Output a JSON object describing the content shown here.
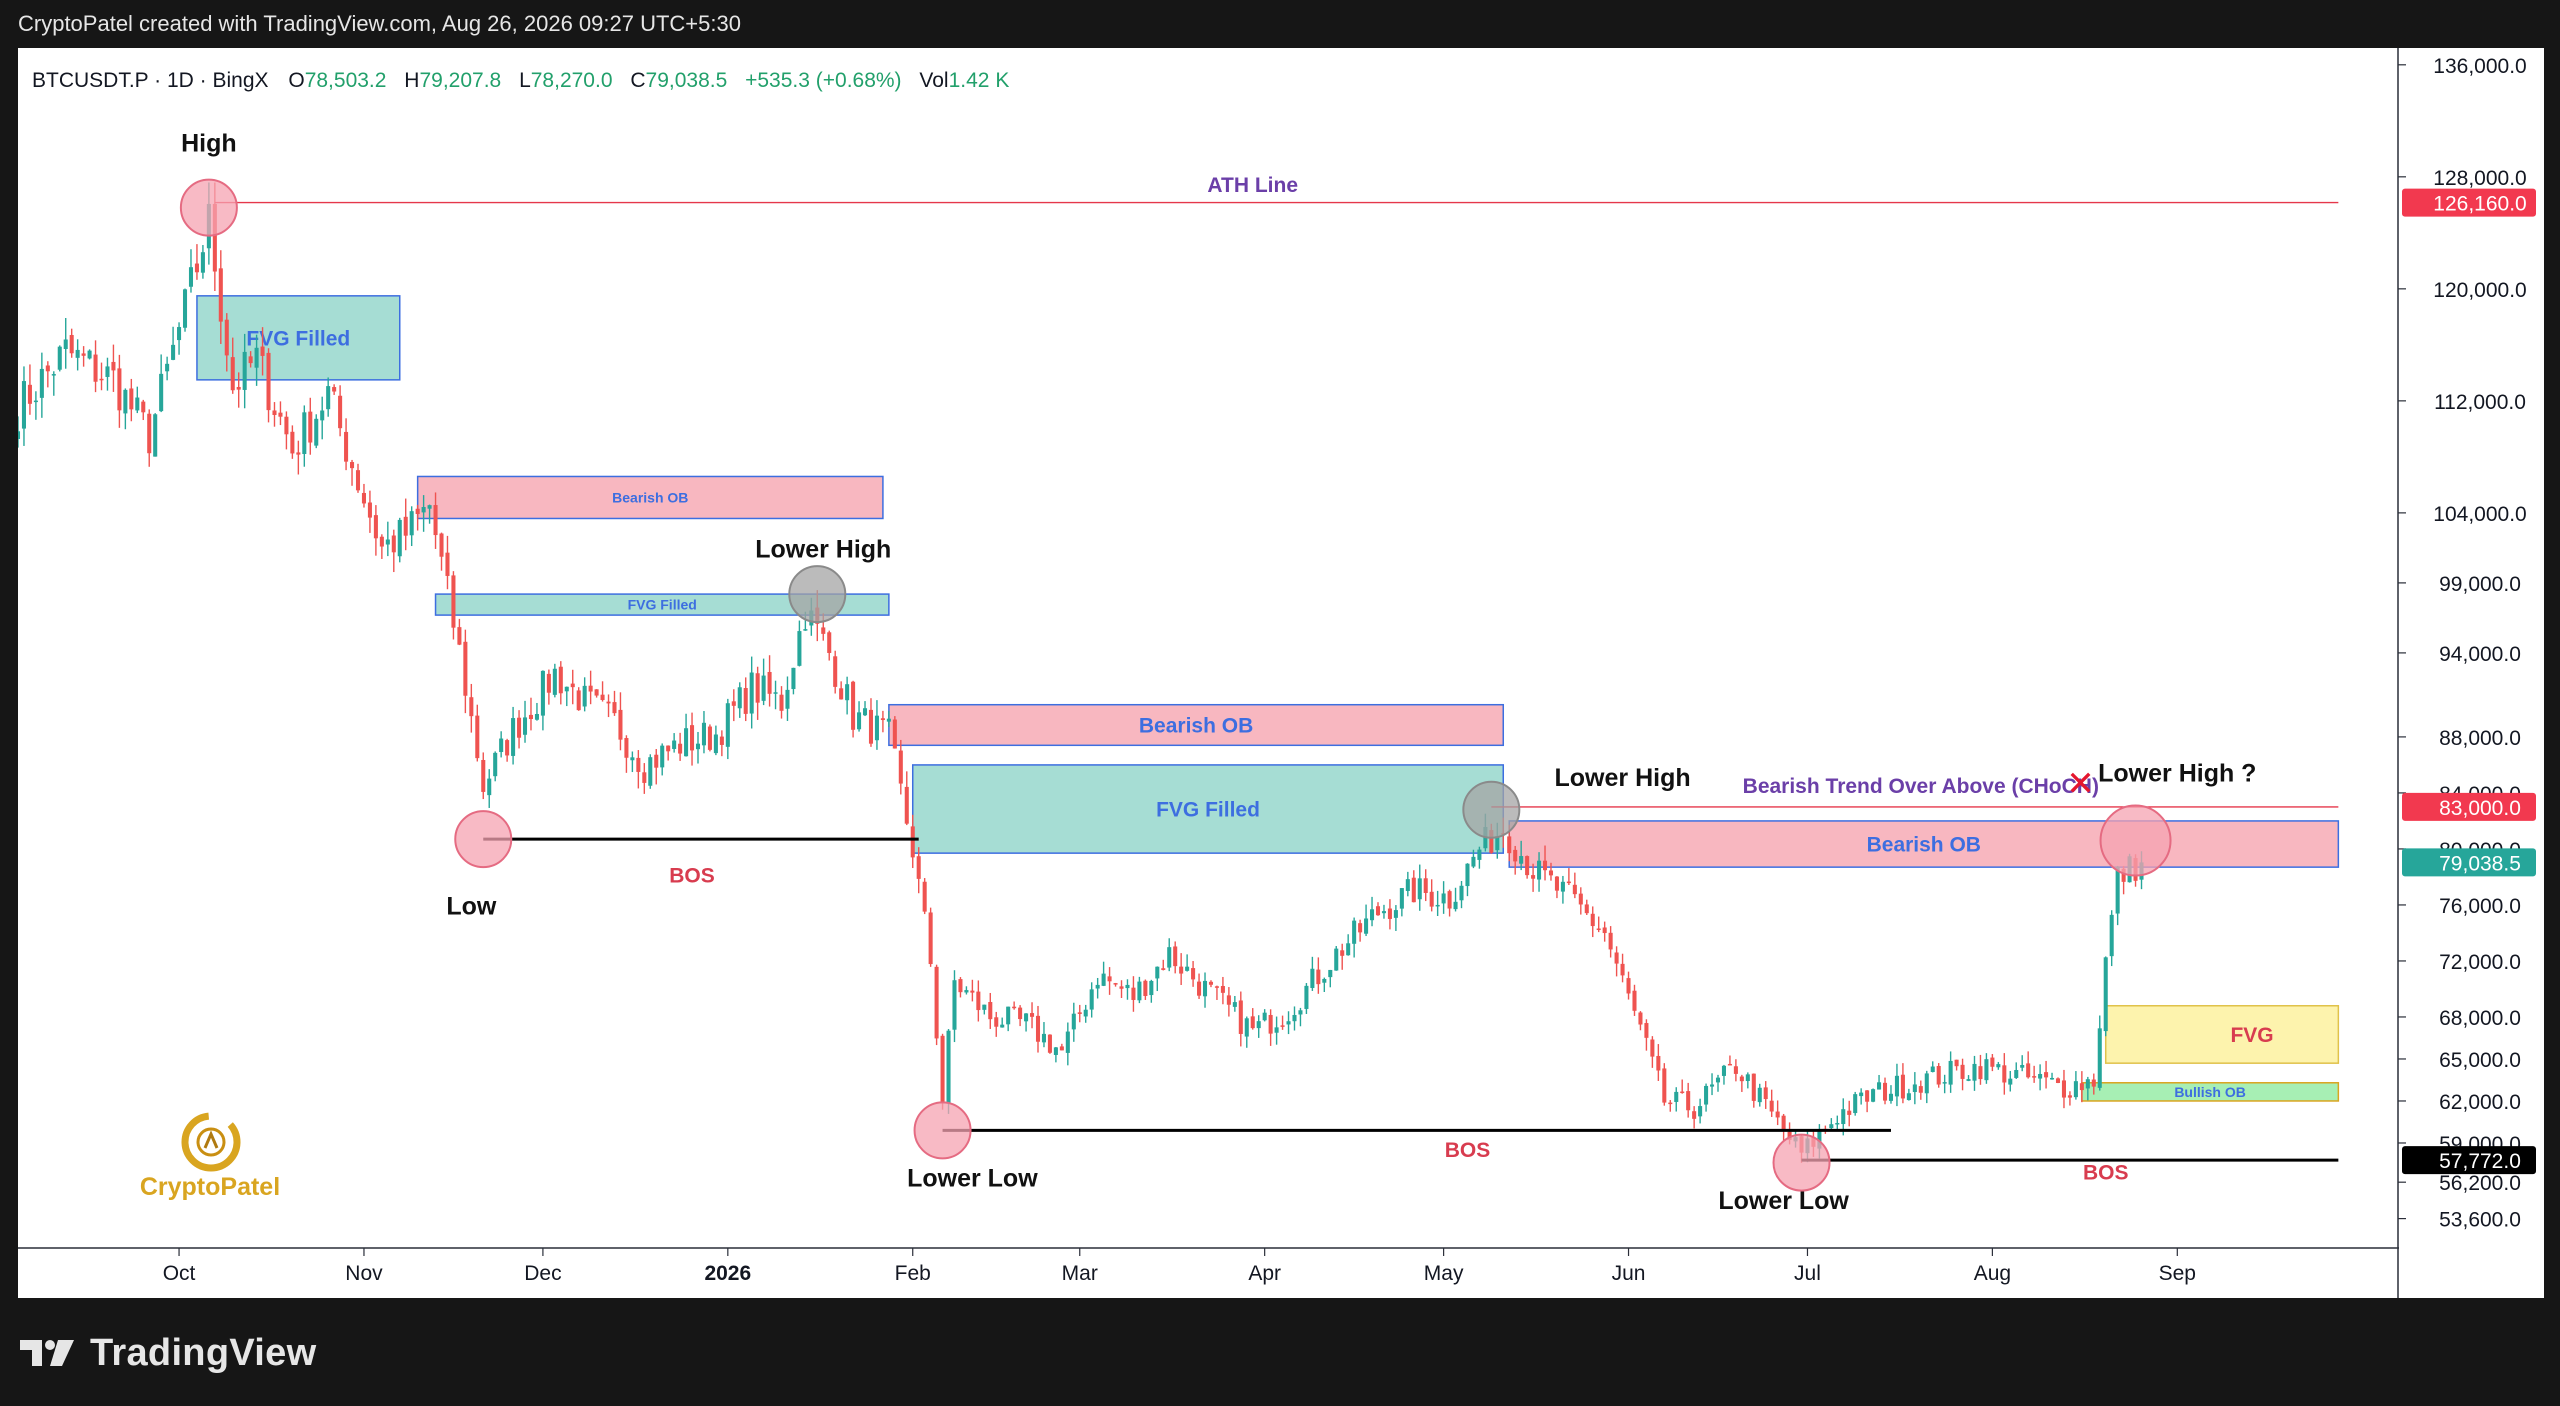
{
  "header": {
    "caption": "CryptoPatel created with TradingView.com, Aug 26, 2026 09:27 UTC+5:30"
  },
  "symbol_bar": {
    "symbol": "BTCUSDT.P · 1D · BingX",
    "open_label": "O",
    "open": "78,503.2",
    "high_label": "H",
    "high": "79,207.8",
    "low_label": "L",
    "low": "78,270.0",
    "close_label": "C",
    "close": "79,038.5",
    "change": "+535.3 (+0.68%)",
    "vol_label": "Vol",
    "vol": "1.42 K"
  },
  "colors": {
    "up": "#26a69a",
    "down": "#ef5350",
    "ath": "#e5374a",
    "bos": "#000000",
    "ob_fill": "#f8b7c0",
    "fvg_fill": "#a6ddd4",
    "box_border": "#3d6ee0",
    "fvg_yellow": "#fdf3ad",
    "bullish_ob": "#a7efb4",
    "label_blue": "#3d6ee0",
    "label_purple": "#6b3fa8",
    "label_red": "#d83c4f",
    "marker_pink": "#f5a3b1",
    "marker_gray": "#a4a4a4"
  },
  "chart_data": {
    "type": "candlestick",
    "timeframe": "1D",
    "ylim": [
      51500,
      137200
    ],
    "y_ticks": [
      "136,000.0",
      "128,000.0",
      "120,000.0",
      "112,000.0",
      "104,000.0",
      "99,000.0",
      "94,000.0",
      "88,000.0",
      "84,000.0",
      "80,000.0",
      "76,000.0",
      "72,000.0",
      "68,000.0",
      "65,000.0",
      "62,000.0",
      "59,000.0",
      "56,200.0",
      "53,600.0"
    ],
    "x_ticks": [
      {
        "label": "Oct",
        "date": "2025-10-01",
        "bold": false
      },
      {
        "label": "Nov",
        "date": "2025-11-01",
        "bold": false
      },
      {
        "label": "Dec",
        "date": "2025-12-01",
        "bold": false
      },
      {
        "label": "2026",
        "date": "2026-01-01",
        "bold": true
      },
      {
        "label": "Feb",
        "date": "2026-02-01",
        "bold": false
      },
      {
        "label": "Mar",
        "date": "2026-03-01",
        "bold": false
      },
      {
        "label": "Apr",
        "date": "2026-04-01",
        "bold": false
      },
      {
        "label": "May",
        "date": "2026-05-01",
        "bold": false
      },
      {
        "label": "Jun",
        "date": "2026-06-01",
        "bold": false
      },
      {
        "label": "Jul",
        "date": "2026-07-01",
        "bold": false
      },
      {
        "label": "Aug",
        "date": "2026-08-01",
        "bold": false
      },
      {
        "label": "Sep",
        "date": "2026-09-01",
        "bold": false
      }
    ],
    "x_range": [
      "2025-09-04",
      "2026-10-08"
    ],
    "price_path": [
      [
        "2025-09-04",
        111500
      ],
      [
        "2025-09-12",
        115500
      ],
      [
        "2025-09-20",
        113500
      ],
      [
        "2025-09-26",
        109500
      ],
      [
        "2025-10-02",
        118500
      ],
      [
        "2025-10-06",
        124800
      ],
      [
        "2025-10-10",
        113000
      ],
      [
        "2025-10-14",
        115000
      ],
      [
        "2025-10-20",
        108500
      ],
      [
        "2025-10-26",
        112500
      ],
      [
        "2025-10-30",
        107500
      ],
      [
        "2025-11-04",
        101500
      ],
      [
        "2025-11-08",
        102500
      ],
      [
        "2025-11-12",
        104500
      ],
      [
        "2025-11-17",
        94000
      ],
      [
        "2025-11-21",
        84500
      ],
      [
        "2025-11-26",
        88500
      ],
      [
        "2025-12-03",
        92500
      ],
      [
        "2025-12-08",
        90500
      ],
      [
        "2025-12-13",
        89000
      ],
      [
        "2025-12-18",
        86000
      ],
      [
        "2025-12-24",
        87500
      ],
      [
        "2025-12-30",
        88200
      ],
      [
        "2026-01-05",
        91500
      ],
      [
        "2026-01-10",
        90500
      ],
      [
        "2026-01-14",
        97000
      ],
      [
        "2026-01-18",
        94000
      ],
      [
        "2026-01-22",
        89500
      ],
      [
        "2026-01-28",
        88000
      ],
      [
        "2026-02-01",
        80000
      ],
      [
        "2026-02-04",
        72000
      ],
      [
        "2026-02-06",
        62000
      ],
      [
        "2026-02-08",
        70500
      ],
      [
        "2026-02-14",
        68000
      ],
      [
        "2026-02-20",
        67500
      ],
      [
        "2026-02-26",
        65500
      ],
      [
        "2026-03-04",
        71000
      ],
      [
        "2026-03-10",
        69500
      ],
      [
        "2026-03-16",
        72500
      ],
      [
        "2026-03-22",
        70000
      ],
      [
        "2026-03-30",
        67000
      ],
      [
        "2026-04-05",
        68500
      ],
      [
        "2026-04-13",
        72500
      ],
      [
        "2026-04-20",
        75500
      ],
      [
        "2026-04-26",
        77000
      ],
      [
        "2026-05-02",
        76500
      ],
      [
        "2026-05-07",
        80000
      ],
      [
        "2026-05-11",
        81500
      ],
      [
        "2026-05-16",
        78500
      ],
      [
        "2026-05-22",
        76500
      ],
      [
        "2026-05-28",
        74000
      ],
      [
        "2026-06-03",
        67000
      ],
      [
        "2026-06-07",
        62000
      ],
      [
        "2026-06-12",
        61500
      ],
      [
        "2026-06-19",
        64500
      ],
      [
        "2026-06-25",
        61000
      ],
      [
        "2026-06-30",
        58200
      ],
      [
        "2026-07-06",
        61000
      ],
      [
        "2026-07-12",
        62500
      ],
      [
        "2026-07-20",
        63500
      ],
      [
        "2026-07-30",
        64500
      ],
      [
        "2026-08-05",
        63800
      ],
      [
        "2026-08-13",
        63000
      ],
      [
        "2026-08-18",
        63500
      ],
      [
        "2026-08-20",
        72000
      ],
      [
        "2026-08-22",
        78000
      ],
      [
        "2026-08-26",
        79038.5
      ]
    ],
    "last_price": 79038.5
  },
  "price_tags": [
    {
      "label": "126,160.0",
      "value": 126160,
      "bg": "#f2394f",
      "fg": "#ffffff"
    },
    {
      "label": "83,000.0",
      "value": 83000,
      "bg": "#f2394f",
      "fg": "#ffffff"
    },
    {
      "label": "79,038.5",
      "value": 79038.5,
      "bg": "#26a69a",
      "fg": "#ffffff"
    },
    {
      "label": "57,772.0",
      "value": 57772,
      "bg": "#000000",
      "fg": "#ffffff"
    }
  ],
  "zones": [
    {
      "name": "fvg-zone-oct",
      "type": "fvg",
      "label": "FVG Filled",
      "from": "2025-10-04",
      "to": "2025-11-07",
      "top": 119500,
      "bottom": 113500,
      "label_size": "big"
    },
    {
      "name": "bearish-ob-nov",
      "type": "ob",
      "label": "Bearish OB",
      "from": "2025-11-10",
      "to": "2026-01-27",
      "top": 106600,
      "bottom": 103600,
      "label_size": "small"
    },
    {
      "name": "fvg-zone-nov",
      "type": "fvg",
      "label": "FVG Filled",
      "from": "2025-11-13",
      "to": "2026-01-28",
      "top": 98200,
      "bottom": 96700,
      "label_size": "small"
    },
    {
      "name": "bearish-ob-feb",
      "type": "ob",
      "label": "Bearish OB",
      "from": "2026-01-28",
      "to": "2026-05-11",
      "top": 90300,
      "bottom": 87400,
      "label_size": "big"
    },
    {
      "name": "fvg-zone-feb",
      "type": "fvg",
      "label": "FVG Filled",
      "from": "2026-02-01",
      "to": "2026-05-11",
      "top": 86000,
      "bottom": 79700,
      "label_size": "big"
    },
    {
      "name": "bearish-ob-may",
      "type": "ob",
      "label": "Bearish OB",
      "from": "2026-05-12",
      "to": "2026-09-28",
      "top": 82000,
      "bottom": 78700,
      "label_size": "big"
    },
    {
      "name": "fvg-zone-aug",
      "type": "fvg_yellow",
      "label": "FVG",
      "from": "2026-08-20",
      "to": "2026-09-28",
      "top": 68800,
      "bottom": 64700,
      "label_size": "fvg"
    },
    {
      "name": "bullish-ob-aug",
      "type": "bullish_ob",
      "label": "Bullish OB",
      "from": "2026-08-16",
      "to": "2026-09-28",
      "top": 63300,
      "bottom": 62000,
      "label_size": "small"
    }
  ],
  "lines": [
    {
      "name": "ath-line",
      "color": "#e5374a",
      "width": 1.3,
      "from": "2025-10-07",
      "to": "2026-09-28",
      "value": 126160
    },
    {
      "name": "choch-line",
      "color": "#e5374a",
      "width": 1.3,
      "from": "2026-05-09",
      "to": "2026-09-28",
      "value": 83000
    },
    {
      "name": "bos-line-nov",
      "color": "#000000",
      "width": 3,
      "from": "2025-11-21",
      "to": "2026-02-02",
      "value": 80700
    },
    {
      "name": "bos-line-feb",
      "color": "#000000",
      "width": 3,
      "from": "2026-02-06",
      "to": "2026-07-15",
      "value": 59900
    },
    {
      "name": "bos-line-jul",
      "color": "#000000",
      "width": 3,
      "from": "2026-06-30",
      "to": "2026-09-28",
      "value": 57772
    }
  ],
  "markers": [
    {
      "name": "high-marker",
      "date": "2025-10-06",
      "value": 125800,
      "color": "#f5a3b1",
      "r": 28
    },
    {
      "name": "low-marker",
      "date": "2025-11-21",
      "value": 80700,
      "color": "#f5a3b1",
      "r": 28
    },
    {
      "name": "lower-high-jan-marker",
      "date": "2026-01-16",
      "value": 98200,
      "color": "#a4a4a4",
      "r": 28
    },
    {
      "name": "lower-low-feb-marker",
      "date": "2026-02-06",
      "value": 59900,
      "color": "#f5a3b1",
      "r": 28
    },
    {
      "name": "lower-high-may-marker",
      "date": "2026-05-09",
      "value": 82800,
      "color": "#a4a4a4",
      "r": 28
    },
    {
      "name": "lower-low-jul-marker",
      "date": "2026-06-30",
      "value": 57600,
      "color": "#f5a3b1",
      "r": 28
    },
    {
      "name": "lower-high-aug-marker",
      "date": "2026-08-25",
      "value": 80600,
      "color": "#f5a3b1",
      "r": 35
    }
  ],
  "annotations": [
    {
      "name": "label-high",
      "text": "High",
      "date": "2025-10-06",
      "value": 129800,
      "color": "#111111",
      "size": 25,
      "weight": "bold",
      "anchor": "middle"
    },
    {
      "name": "label-ath-line",
      "text": "ATH Line",
      "date": "2026-03-30",
      "value": 126900,
      "color": "#6b3fa8",
      "size": 21,
      "weight": "bold",
      "anchor": "middle"
    },
    {
      "name": "label-lower-high-jan",
      "text": "Lower High",
      "date": "2026-01-17",
      "value": 100800,
      "color": "#111111",
      "size": 25,
      "weight": "bold",
      "anchor": "middle"
    },
    {
      "name": "label-low",
      "text": "Low",
      "date": "2025-11-19",
      "value": 75300,
      "color": "#111111",
      "size": 25,
      "weight": "bold",
      "anchor": "middle"
    },
    {
      "name": "label-bos-nov",
      "text": "BOS",
      "date": "2025-12-26",
      "value": 77600,
      "color": "#d83c4f",
      "size": 21,
      "weight": "bold",
      "anchor": "middle"
    },
    {
      "name": "label-lower-high-may",
      "text": "Lower High",
      "date": "2026-05-31",
      "value": 84500,
      "color": "#111111",
      "size": 25,
      "weight": "bold",
      "anchor": "middle"
    },
    {
      "name": "label-choch",
      "text": "Bearish Trend Over Above (CHoCH)",
      "date": "2026-07-20",
      "value": 84000,
      "color": "#6b3fa8",
      "size": 21,
      "weight": "bold",
      "anchor": "middle"
    },
    {
      "name": "label-lower-high-aug",
      "text": "Lower High ?",
      "date": "2026-09-01",
      "value": 84800,
      "color": "#111111",
      "size": 25,
      "weight": "bold",
      "anchor": "middle"
    },
    {
      "name": "label-lower-low-feb",
      "text": "Lower Low",
      "date": "2026-02-11",
      "value": 55900,
      "color": "#111111",
      "size": 25,
      "weight": "bold",
      "anchor": "middle"
    },
    {
      "name": "label-bos-feb",
      "text": "BOS",
      "date": "2026-05-05",
      "value": 58000,
      "color": "#d83c4f",
      "size": 21,
      "weight": "bold",
      "anchor": "middle"
    },
    {
      "name": "label-lower-low-jul",
      "text": "Lower Low",
      "date": "2026-06-27",
      "value": 54300,
      "color": "#111111",
      "size": 25,
      "weight": "bold",
      "anchor": "middle"
    },
    {
      "name": "label-bos-jul",
      "text": "BOS",
      "date": "2026-08-20",
      "value": 56400,
      "color": "#d83c4f",
      "size": 21,
      "weight": "bold",
      "anchor": "middle"
    }
  ],
  "choch_cross": {
    "symbol": "✕",
    "date": "2026-08-05",
    "value": 84000,
    "color": "#e5162e"
  },
  "watermark": {
    "text": "CryptoPatel"
  },
  "footer": {
    "brand": "TradingView"
  }
}
